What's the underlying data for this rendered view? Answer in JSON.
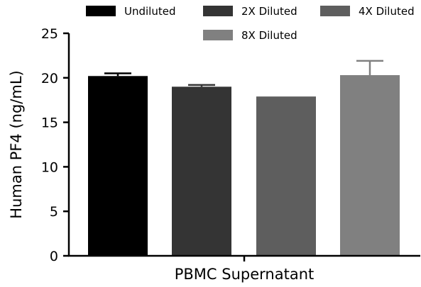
{
  "chart_data": {
    "type": "bar",
    "title": "",
    "xlabel": "PBMC Supernatant",
    "ylabel": "Human PF4 (ng/mL)",
    "ylim": [
      0,
      25
    ],
    "yticks": [
      0,
      5,
      10,
      15,
      20,
      25
    ],
    "grid": false,
    "legend_position": "top",
    "categories": [
      "PBMC Supernatant"
    ],
    "series": [
      {
        "name": "Undiluted",
        "values": [
          20.2
        ],
        "error": [
          0.3
        ],
        "color": "#000000"
      },
      {
        "name": "2X Diluted",
        "values": [
          19.0
        ],
        "error": [
          0.2
        ],
        "color": "#343434"
      },
      {
        "name": "4X Diluted",
        "values": [
          17.9
        ],
        "error": [
          0
        ],
        "color": "#5e5e5e"
      },
      {
        "name": "8X Diluted",
        "values": [
          20.3
        ],
        "error": [
          1.6
        ],
        "color": "#808080"
      }
    ]
  }
}
